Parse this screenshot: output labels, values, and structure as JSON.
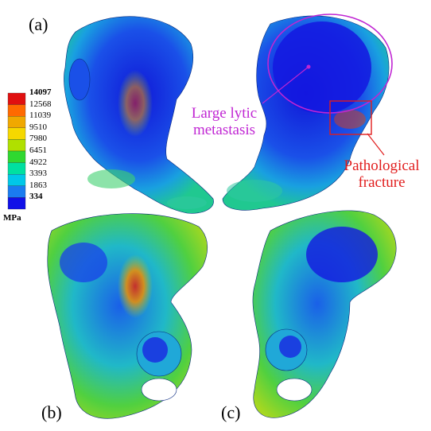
{
  "panels": [
    "(a)",
    "(b)",
    "(c)"
  ],
  "legend": {
    "unit": "MPa",
    "values": [
      "14097",
      "12568",
      "11039",
      "9510",
      "7980",
      "6451",
      "4922",
      "3393",
      "1863",
      "334"
    ],
    "colors": [
      "#e01010",
      "#ff6a00",
      "#f0a800",
      "#f5d800",
      "#b0e000",
      "#30d830",
      "#00e0a0",
      "#00c8e8",
      "#1a7cf0",
      "#1010e8"
    ]
  },
  "annotations": {
    "lytic_line1": "Large lytic",
    "lytic_line2": "metastasis",
    "fracture_line1": "Pathological",
    "fracture_line2": "fracture",
    "lytic_color": "#c026d3",
    "fracture_color": "#e11d1d"
  }
}
